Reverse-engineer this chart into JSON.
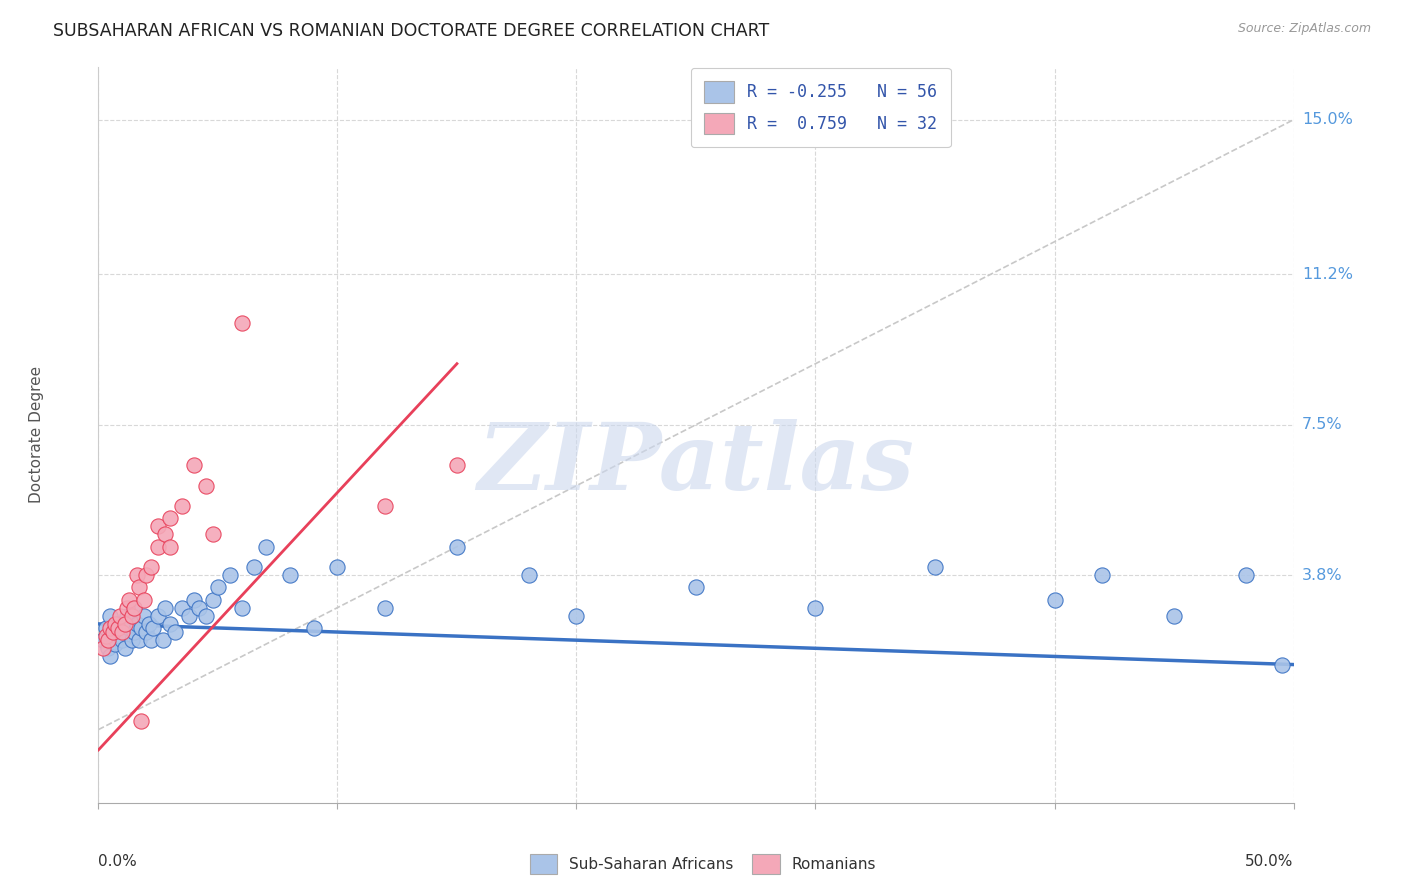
{
  "title": "SUBSAHARAN AFRICAN VS ROMANIAN DOCTORATE DEGREE CORRELATION CHART",
  "source": "Source: ZipAtlas.com",
  "ylabel": "Doctorate Degree",
  "ytick_labels": [
    "15.0%",
    "11.2%",
    "7.5%",
    "3.8%"
  ],
  "ytick_values": [
    0.15,
    0.112,
    0.075,
    0.038
  ],
  "xlim": [
    0.0,
    0.5
  ],
  "ylim": [
    -0.018,
    0.163
  ],
  "legend_line1": "R = -0.255   N = 56",
  "legend_line2": "R =  0.759   N = 32",
  "blue_scatter_x": [
    0.002,
    0.003,
    0.004,
    0.005,
    0.005,
    0.006,
    0.007,
    0.008,
    0.009,
    0.01,
    0.01,
    0.011,
    0.012,
    0.013,
    0.014,
    0.015,
    0.015,
    0.016,
    0.017,
    0.018,
    0.019,
    0.02,
    0.021,
    0.022,
    0.023,
    0.025,
    0.027,
    0.028,
    0.03,
    0.032,
    0.035,
    0.038,
    0.04,
    0.042,
    0.045,
    0.048,
    0.05,
    0.055,
    0.06,
    0.065,
    0.07,
    0.08,
    0.09,
    0.1,
    0.12,
    0.15,
    0.18,
    0.2,
    0.25,
    0.3,
    0.35,
    0.4,
    0.42,
    0.45,
    0.48,
    0.495
  ],
  "blue_scatter_y": [
    0.022,
    0.025,
    0.02,
    0.028,
    0.018,
    0.024,
    0.021,
    0.026,
    0.023,
    0.025,
    0.022,
    0.02,
    0.028,
    0.025,
    0.022,
    0.03,
    0.024,
    0.026,
    0.022,
    0.025,
    0.028,
    0.024,
    0.026,
    0.022,
    0.025,
    0.028,
    0.022,
    0.03,
    0.026,
    0.024,
    0.03,
    0.028,
    0.032,
    0.03,
    0.028,
    0.032,
    0.035,
    0.038,
    0.03,
    0.04,
    0.045,
    0.038,
    0.025,
    0.04,
    0.03,
    0.045,
    0.038,
    0.028,
    0.035,
    0.03,
    0.04,
    0.032,
    0.038,
    0.028,
    0.038,
    0.016
  ],
  "pink_scatter_x": [
    0.002,
    0.003,
    0.004,
    0.005,
    0.006,
    0.007,
    0.008,
    0.009,
    0.01,
    0.011,
    0.012,
    0.013,
    0.014,
    0.015,
    0.016,
    0.017,
    0.018,
    0.019,
    0.02,
    0.022,
    0.025,
    0.025,
    0.028,
    0.03,
    0.03,
    0.035,
    0.04,
    0.045,
    0.048,
    0.06,
    0.12,
    0.15
  ],
  "pink_scatter_y": [
    0.02,
    0.023,
    0.022,
    0.025,
    0.024,
    0.026,
    0.025,
    0.028,
    0.024,
    0.026,
    0.03,
    0.032,
    0.028,
    0.03,
    0.038,
    0.035,
    0.002,
    0.032,
    0.038,
    0.04,
    0.045,
    0.05,
    0.048,
    0.052,
    0.045,
    0.055,
    0.065,
    0.06,
    0.048,
    0.1,
    0.055,
    0.065
  ],
  "blue_line_x": [
    0.0,
    0.5
  ],
  "blue_line_y": [
    0.026,
    0.016
  ],
  "pink_line_x": [
    0.0,
    0.15
  ],
  "pink_line_y": [
    -0.005,
    0.09
  ],
  "dashed_line_x": [
    0.0,
    0.5
  ],
  "dashed_line_y": [
    0.0,
    0.15
  ],
  "blue_color": "#3a72c4",
  "pink_color": "#e8405a",
  "blue_scatter_color": "#aac4e8",
  "pink_scatter_color": "#f4a8b8",
  "dashed_color": "#c8c8c8",
  "watermark_text": "ZIPatlas",
  "background_color": "#ffffff",
  "grid_color": "#d8d8d8"
}
